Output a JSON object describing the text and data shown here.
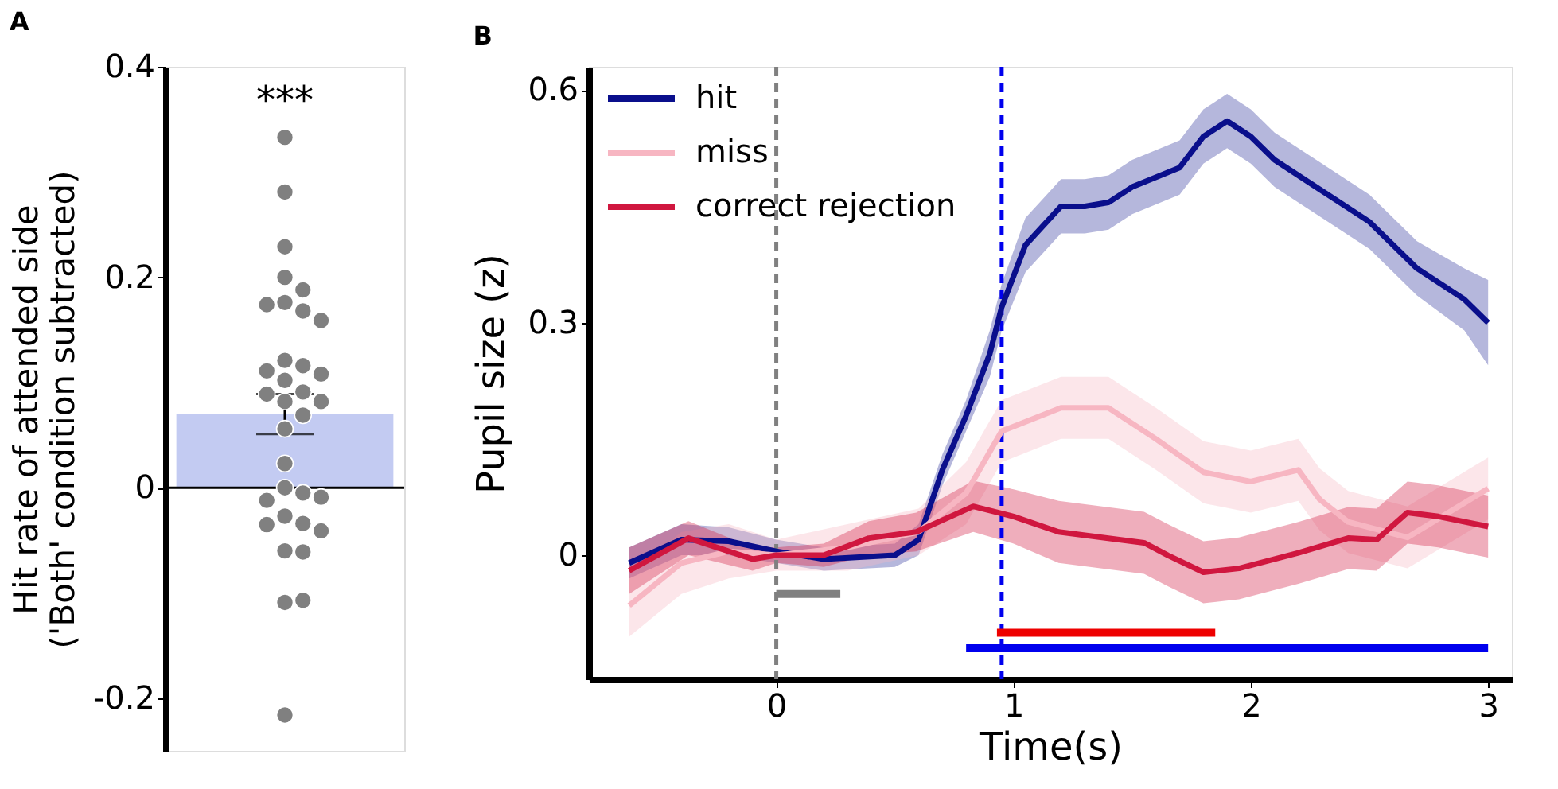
{
  "chart_data": [
    {
      "type": "bar",
      "annotations": [
        "A",
        "***"
      ],
      "ylabel": "Hit rate of attended side\n('Both' condition subtracted)",
      "categories": [
        null
      ],
      "values": [
        0.07
      ],
      "errors": [
        [
          0.051,
          0.089
        ]
      ],
      "color": "#c3cbf2",
      "ylim": [
        -0.25,
        0.4
      ],
      "yticks": [
        -0.2,
        0,
        0.2,
        0.4
      ],
      "tick_labels": "y",
      "ref_lines": [
        {
          "axis": "y",
          "value": 0,
          "color": "#000000"
        }
      ],
      "series": [
        {
          "type": "scatter",
          "color": "#808080",
          "marker": "circle",
          "x": [
            null,
            null,
            null,
            null,
            null,
            null,
            null,
            null,
            null,
            null,
            null,
            null,
            null,
            null,
            null,
            null,
            null,
            null,
            null,
            null,
            null,
            null,
            null,
            null,
            null,
            null,
            null,
            null,
            null,
            null,
            null,
            null,
            null,
            null
          ],
          "values": [
            0.333,
            0.281,
            0.229,
            0.2,
            0.188,
            0.176,
            0.174,
            0.168,
            0.159,
            0.121,
            0.116,
            0.111,
            0.108,
            0.102,
            0.091,
            0.089,
            0.082,
            0.082,
            0.069,
            0.056,
            0.023,
            0,
            -0.005,
            -0.012,
            -0.009,
            -0.027,
            -0.034,
            -0.035,
            -0.041,
            -0.06,
            -0.061,
            -0.109,
            -0.107,
            -0.216
          ]
        }
      ]
    },
    {
      "type": "line",
      "annotations": [
        "B"
      ],
      "xlabel": "Time(s)",
      "ylabel": "Pupil size (z)",
      "xlim": [
        -0.79,
        3.1
      ],
      "xticks": [
        0,
        1,
        2,
        3
      ],
      "ylim": [
        -0.16,
        0.63
      ],
      "yticks": [
        0,
        0.3,
        0.6
      ],
      "legend": "top left",
      "marker": "none",
      "line_style": "solid",
      "ref_lines": [
        {
          "axis": "x",
          "value": 0,
          "color": "#808080",
          "line_style": "dashed"
        },
        {
          "axis": "x",
          "value": 0.95,
          "color": "#0000ee",
          "line_style": "dashed"
        }
      ],
      "series": [
        {
          "name": "hit",
          "color": "#0a0f8c",
          "x": [
            -0.62,
            -0.4,
            -0.2,
            0,
            0.2,
            0.5,
            0.6,
            0.7,
            0.8,
            0.9,
            0.95,
            1.05,
            1.2,
            1.3,
            1.4,
            1.5,
            1.7,
            1.8,
            1.9,
            2.0,
            2.1,
            2.3,
            2.5,
            2.7,
            2.9,
            3.0
          ],
          "values": [
            -0.01,
            0.02,
            0.018,
            0.005,
            -0.005,
            0,
            0.02,
            0.11,
            0.18,
            0.26,
            0.32,
            0.4,
            0.45,
            0.45,
            0.455,
            0.475,
            0.5,
            0.54,
            0.56,
            0.54,
            0.51,
            0.47,
            0.43,
            0.37,
            0.33,
            0.3
          ],
          "lower": [
            -0.03,
            0.0,
            0.0,
            -0.01,
            -0.02,
            -0.015,
            0.0,
            0.09,
            0.16,
            0.23,
            0.29,
            0.365,
            0.415,
            0.415,
            0.42,
            0.44,
            0.465,
            0.505,
            0.525,
            0.505,
            0.475,
            0.435,
            0.395,
            0.335,
            0.29,
            0.245
          ],
          "upper": [
            0.01,
            0.04,
            0.036,
            0.02,
            0.01,
            0.015,
            0.04,
            0.13,
            0.2,
            0.29,
            0.35,
            0.435,
            0.485,
            0.485,
            0.49,
            0.51,
            0.535,
            0.575,
            0.595,
            0.575,
            0.545,
            0.505,
            0.465,
            0.405,
            0.37,
            0.355
          ]
        },
        {
          "name": "miss",
          "color": "#f7b6c2",
          "x": [
            -0.62,
            -0.4,
            -0.2,
            0,
            0.3,
            0.6,
            0.8,
            0.95,
            1.2,
            1.4,
            1.6,
            1.8,
            2.0,
            2.2,
            2.29,
            2.41,
            2.66,
            3.0
          ],
          "values": [
            -0.065,
            -0.01,
            0.005,
            0,
            0.01,
            0.03,
            0.08,
            0.16,
            0.19,
            0.19,
            0.15,
            0.107,
            0.095,
            0.11,
            0.072,
            0.043,
            0.023,
            0.086
          ],
          "lower": [
            -0.105,
            -0.05,
            -0.03,
            -0.02,
            -0.02,
            0.0,
            0.04,
            0.12,
            0.15,
            0.15,
            0.11,
            0.067,
            0.055,
            0.07,
            0.032,
            0.003,
            -0.017,
            0.046
          ],
          "upper": [
            -0.025,
            0.03,
            0.04,
            0.02,
            0.04,
            0.06,
            0.12,
            0.2,
            0.23,
            0.23,
            0.19,
            0.147,
            0.135,
            0.15,
            0.112,
            0.083,
            0.063,
            0.126
          ]
        },
        {
          "name": "correct rejection",
          "color": "#d0173f",
          "x": [
            -0.62,
            -0.37,
            -0.1,
            0,
            0.2,
            0.39,
            0.59,
            0.83,
            1.0,
            1.19,
            1.55,
            1.65,
            1.8,
            1.95,
            2.2,
            2.41,
            2.53,
            2.66,
            2.79,
            3.0
          ],
          "values": [
            -0.02,
            0.022,
            -0.005,
            0,
            0,
            0.022,
            0.03,
            0.063,
            0.05,
            0.03,
            0.016,
            0,
            -0.022,
            -0.017,
            0.003,
            0.022,
            0.02,
            0.055,
            0.05,
            0.037
          ],
          "lower": [
            -0.05,
            0.0,
            -0.02,
            -0.01,
            -0.015,
            0.0,
            0.005,
            0.03,
            0.015,
            -0.01,
            -0.024,
            -0.04,
            -0.062,
            -0.057,
            -0.037,
            -0.018,
            -0.02,
            0.015,
            0.01,
            -0.003
          ],
          "upper": [
            0.01,
            0.044,
            0.01,
            0.01,
            0.015,
            0.044,
            0.055,
            0.096,
            0.085,
            0.07,
            0.056,
            0.04,
            0.018,
            0.023,
            0.043,
            0.062,
            0.06,
            0.095,
            0.09,
            0.077
          ]
        },
        {
          "color": "#808080",
          "x": [
            0,
            0.27
          ],
          "values": [
            -0.05,
            -0.05
          ]
        },
        {
          "color": "#ee0000",
          "x": [
            0.93,
            1.85
          ],
          "values": [
            -0.1,
            -0.1
          ]
        },
        {
          "color": "#0000ee",
          "x": [
            0.8,
            3.0
          ],
          "values": [
            -0.12,
            -0.12
          ]
        }
      ]
    }
  ]
}
